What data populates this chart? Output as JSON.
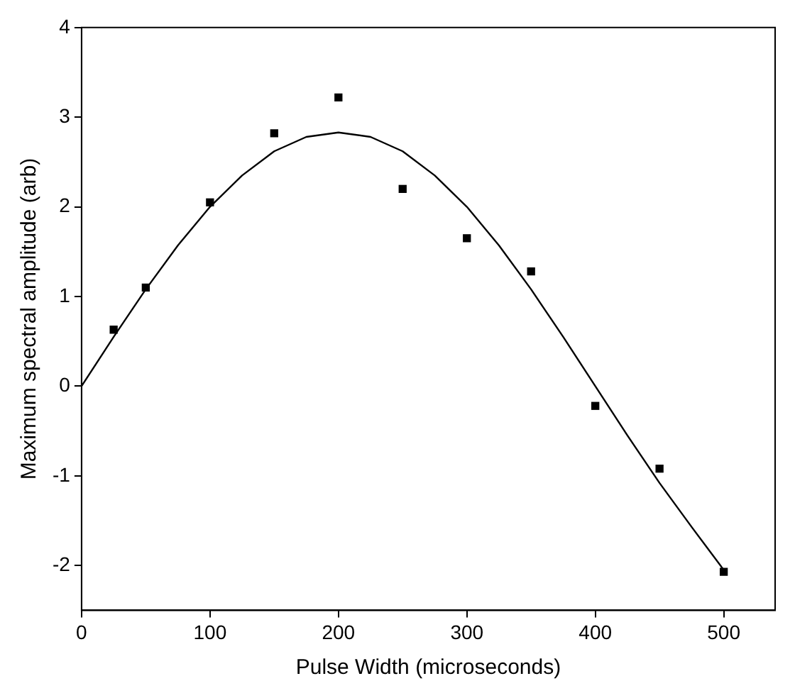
{
  "chart_data": {
    "type": "scatter",
    "xlabel": "Pulse Width (microseconds)",
    "ylabel": "Maximum spectral amplitude (arb)",
    "xlim": [
      0,
      540
    ],
    "xticks": [
      0,
      100,
      200,
      300,
      400,
      500
    ],
    "ylim": [
      -2.5,
      4
    ],
    "yticks": [
      -2,
      -1,
      0,
      1,
      2,
      3,
      4
    ],
    "grid": false,
    "legend": false,
    "series": [
      {
        "color": "#000000",
        "marker": "square",
        "x": [
          25,
          50,
          100,
          150,
          200,
          250,
          300,
          350,
          400,
          450,
          500
        ],
        "values": [
          0.63,
          1.1,
          2.05,
          2.82,
          3.22,
          2.2,
          1.65,
          1.28,
          -0.22,
          -0.92,
          -2.07
        ]
      },
      {
        "type": "line",
        "color": "#000000",
        "line_style": "solid",
        "x": [
          0,
          25,
          50,
          75,
          100,
          125,
          150,
          175,
          200,
          225,
          250,
          275,
          300,
          325,
          350,
          375,
          400,
          425,
          450,
          475,
          500
        ],
        "values": [
          0,
          0.55,
          1.08,
          1.57,
          2.0,
          2.35,
          2.62,
          2.78,
          2.83,
          2.78,
          2.62,
          2.35,
          2.0,
          1.57,
          1.08,
          0.55,
          0,
          -0.55,
          -1.08,
          -1.57,
          -2.05
        ]
      }
    ]
  }
}
